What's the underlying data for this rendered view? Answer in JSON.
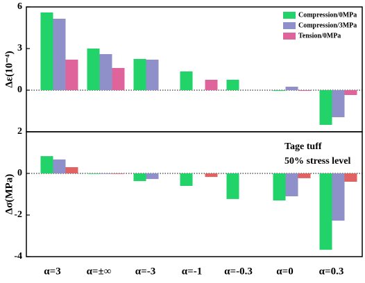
{
  "chart_data": [
    {
      "type": "bar",
      "ylabel": "Δε(10⁻⁴)",
      "ylim": [
        -3,
        6
      ],
      "yticks": [
        0,
        3,
        6
      ],
      "legend": "upper right",
      "series": [
        {
          "name": "Compression/0MPa",
          "color": "#22d36a",
          "values": [
            5.6,
            3.0,
            2.25,
            1.35,
            0.75,
            -0.05,
            -2.5
          ]
        },
        {
          "name": "Compression/3MPa",
          "color": "#8f8fc9",
          "values": [
            5.15,
            2.6,
            2.2,
            null,
            null,
            0.25,
            -1.95
          ]
        },
        {
          "name": "Tension/0MPa",
          "color": "#e0649c",
          "values": [
            2.2,
            1.6,
            null,
            0.75,
            null,
            -0.05,
            -0.35
          ]
        }
      ]
    },
    {
      "type": "bar",
      "ylabel": "Δσ(MPa)",
      "ylim": [
        -4,
        2
      ],
      "yticks": [
        -4,
        -2,
        0,
        2
      ],
      "categories": [
        "α=3",
        "α=±∞",
        "α=-3",
        "α=-1",
        "α=-0.3",
        "α=0",
        "α=0.3"
      ],
      "annotations": [
        "Tage tuff",
        "50% stress level"
      ],
      "series": [
        {
          "color": "#22d36a",
          "values": [
            0.83,
            0.0,
            -0.37,
            -0.6,
            -1.23,
            -1.3,
            -3.67
          ]
        },
        {
          "color": "#8f8fc9",
          "values": [
            0.67,
            0.0,
            -0.27,
            null,
            null,
            -1.1,
            -2.27
          ]
        },
        {
          "color": "#e06262",
          "values": [
            0.3,
            0.0,
            null,
            -0.17,
            null,
            -0.23,
            -0.4
          ]
        }
      ]
    }
  ]
}
